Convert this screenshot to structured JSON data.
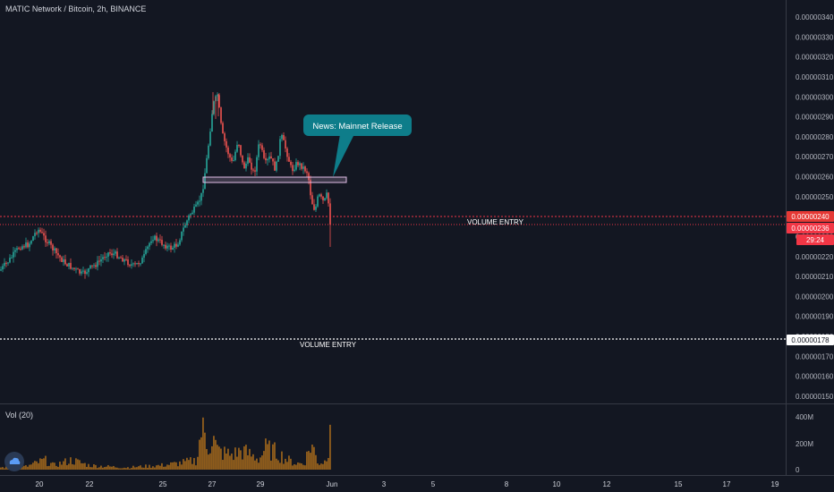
{
  "header": {
    "symbol_title": "MATIC Network / Bitcoin, 2h, BINANCE"
  },
  "volume_pane": {
    "title": "Vol (20)",
    "axis_labels": [
      "400M",
      "200M",
      "0"
    ]
  },
  "price_axis": {
    "labels": [
      "0.00000340",
      "0.00000330",
      "0.00000320",
      "0.00000310",
      "0.00000300",
      "0.00000290",
      "0.00000280",
      "0.00000270",
      "0.00000260",
      "0.00000250",
      "0.00000230",
      "0.00000220",
      "0.00000210",
      "0.00000200",
      "0.00000190",
      "0.00000180",
      "0.00000170",
      "0.00000160",
      "0.00000150"
    ]
  },
  "time_axis": {
    "labels": [
      "20",
      "22",
      "25",
      "27",
      "29",
      "Jun",
      "3",
      "5",
      "8",
      "10",
      "12",
      "15",
      "17",
      "19"
    ]
  },
  "price_tags": [
    {
      "id": "red",
      "label": "0.00000240",
      "color": "#e53935",
      "text_color": "#ffffff"
    },
    {
      "id": "current",
      "label": "0.00000236",
      "color": "#f23645",
      "text_color": "#ffffff"
    },
    {
      "id": "timer",
      "label": "29:24",
      "color": "#f23645",
      "text_color": "#ffffff"
    },
    {
      "id": "white",
      "label": "0.00000178",
      "color": "#ffffff",
      "text_color": "#131722"
    }
  ],
  "annotations": {
    "callout": "News: Mainnet Release",
    "volume_entry_upper": "VOLUME ENTRY",
    "volume_entry_lower": "VOLUME ENTRY"
  },
  "colors": {
    "background": "#131722",
    "up": "#26a69a",
    "down": "#ef5350",
    "volume": "#c27a1a",
    "callout": "#0e7d8a",
    "box": "#e1bee7",
    "red_line": "#f23645",
    "white_line": "#ffffff"
  },
  "chart_data": {
    "type": "candlestick",
    "title": "MATIC Network / Bitcoin, 2h, BINANCE",
    "ylim": [
      1.47e-06,
      3.46e-06
    ],
    "key_levels": {
      "resistance_box": [
        2.57e-06,
        2.6e-06
      ],
      "red_line": 2.4e-06,
      "current_price": 2.36e-06,
      "white_line": 1.78e-06
    },
    "price_path": [
      [
        0,
        2.13e-06
      ],
      [
        10,
        2.18e-06
      ],
      [
        22,
        2.25e-06
      ],
      [
        32,
        2.26e-06
      ],
      [
        42,
        2.34e-06
      ],
      [
        52,
        2.28e-06
      ],
      [
        62,
        2.22e-06
      ],
      [
        72,
        2.17e-06
      ],
      [
        82,
        2.14e-06
      ],
      [
        92,
        2.11e-06
      ],
      [
        100,
        2.14e-06
      ],
      [
        110,
        2.17e-06
      ],
      [
        120,
        2.22e-06
      ],
      [
        130,
        2.21e-06
      ],
      [
        140,
        2.18e-06
      ],
      [
        150,
        2.15e-06
      ],
      [
        160,
        2.19e-06
      ],
      [
        170,
        2.3e-06
      ],
      [
        180,
        2.27e-06
      ],
      [
        190,
        2.24e-06
      ],
      [
        198,
        2.26e-06
      ],
      [
        205,
        2.34e-06
      ],
      [
        212,
        2.41e-06
      ],
      [
        220,
        2.45e-06
      ],
      [
        226,
        2.52e-06
      ],
      [
        232,
        2.72e-06
      ],
      [
        238,
        2.96e-06
      ],
      [
        243,
        3.01e-06
      ],
      [
        248,
        2.82e-06
      ],
      [
        254,
        2.73e-06
      ],
      [
        260,
        2.66e-06
      ],
      [
        266,
        2.79e-06
      ],
      [
        272,
        2.64e-06
      ],
      [
        278,
        2.69e-06
      ],
      [
        284,
        2.61e-06
      ],
      [
        290,
        2.78e-06
      ],
      [
        296,
        2.66e-06
      ],
      [
        302,
        2.7e-06
      ],
      [
        308,
        2.63e-06
      ],
      [
        314,
        2.81e-06
      ],
      [
        320,
        2.73e-06
      ],
      [
        326,
        2.63e-06
      ],
      [
        332,
        2.67e-06
      ],
      [
        338,
        2.65e-06
      ],
      [
        344,
        2.62e-06
      ],
      [
        348,
        2.48e-06
      ],
      [
        352,
        2.43e-06
      ],
      [
        356,
        2.51e-06
      ],
      [
        362,
        2.47e-06
      ],
      [
        366,
        2.52e-06
      ],
      [
        369,
        2.36e-06
      ]
    ],
    "volume_path": [
      [
        0,
        20
      ],
      [
        30,
        30
      ],
      [
        50,
        90
      ],
      [
        60,
        40
      ],
      [
        80,
        90
      ],
      [
        100,
        40
      ],
      [
        140,
        20
      ],
      [
        180,
        40
      ],
      [
        200,
        60
      ],
      [
        220,
        90
      ],
      [
        226,
        430
      ],
      [
        232,
        220
      ],
      [
        238,
        300
      ],
      [
        243,
        180
      ],
      [
        248,
        160
      ],
      [
        260,
        140
      ],
      [
        270,
        180
      ],
      [
        290,
        100
      ],
      [
        296,
        200
      ],
      [
        310,
        160
      ],
      [
        320,
        100
      ],
      [
        330,
        60
      ],
      [
        340,
        60
      ],
      [
        348,
        250
      ],
      [
        356,
        60
      ],
      [
        364,
        80
      ],
      [
        369,
        340
      ]
    ]
  }
}
